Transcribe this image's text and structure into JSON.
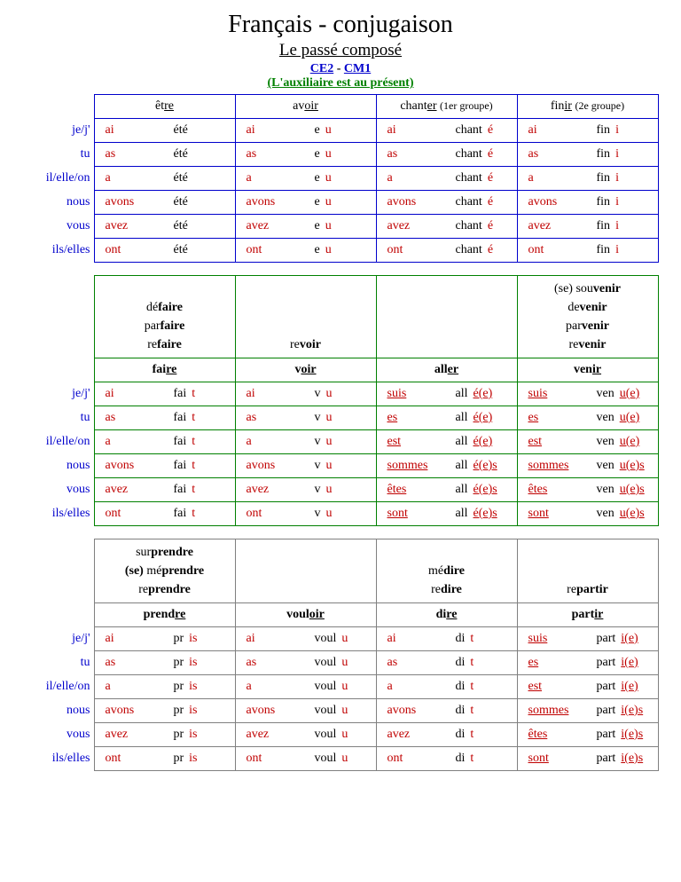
{
  "title": "Français - conjugaison",
  "subtitle1": "Le passé composé",
  "subtitle2_a": "CE2",
  "subtitle2_sep": " - ",
  "subtitle2_b": "CM1",
  "subtitle3": "(L'auxiliaire est au présent)",
  "pronouns": [
    "je/j'",
    "tu",
    "il/elle/on",
    "nous",
    "vous",
    "ils/elles"
  ],
  "aux_avoir": [
    "ai",
    "as",
    "a",
    "avons",
    "avez",
    "ont"
  ],
  "aux_etre": [
    "suis",
    "es",
    "est",
    "sommes",
    "êtes",
    "sont"
  ],
  "t1": {
    "verbs": [
      {
        "hdr_pre": "êt",
        "hdr_ul": "re",
        "hdr_post": "",
        "aux": "avoir",
        "pp_stem": "été",
        "pp_ir": "",
        "agree": false
      },
      {
        "hdr_pre": "av",
        "hdr_ul": "oir",
        "hdr_post": "",
        "aux": "avoir",
        "pp_stem": "e",
        "pp_ir": "u",
        "agree": false
      },
      {
        "hdr_pre": "chant",
        "hdr_ul": "er",
        "hdr_post": " ",
        "note": "(1er groupe)",
        "aux": "avoir",
        "pp_stem": "chant",
        "pp_ir": "é",
        "agree": false
      },
      {
        "hdr_pre": "fin",
        "hdr_ul": "ir",
        "hdr_post": " ",
        "note": "(2e groupe)",
        "aux": "avoir",
        "pp_stem": "fin",
        "pp_ir": "i",
        "agree": false
      }
    ]
  },
  "t2": {
    "verbs": [
      {
        "compounds": [
          "dé<b>faire</b>",
          "par<b>faire</b>",
          "re<b>faire</b>"
        ],
        "base_pre": "fai",
        "base_ul": "re",
        "aux": "avoir",
        "pp_stem": "fai",
        "pp_ir": "t",
        "agree": false,
        "etre": false
      },
      {
        "compounds": [
          "",
          "",
          "re<b>voir</b>"
        ],
        "base_pre": "v",
        "base_ul": "oir",
        "aux": "avoir",
        "pp_stem": "v",
        "pp_ir": "u",
        "agree": false,
        "etre": false
      },
      {
        "compounds": [
          "",
          "",
          ""
        ],
        "base_pre": "all",
        "base_ul": "er",
        "aux": "etre",
        "pp_stem": "all",
        "pp_ir": "é",
        "agree": true,
        "etre": true
      },
      {
        "compounds": [
          "(se) sou<b>venir</b>",
          "de<b>venir</b>",
          "par<b>venir</b>",
          "re<b>venir</b>"
        ],
        "base_pre": "ven",
        "base_ul": "ir",
        "aux": "etre",
        "pp_stem": "ven",
        "pp_ir": "u",
        "agree": true,
        "etre": true
      }
    ]
  },
  "t3": {
    "verbs": [
      {
        "compounds": [
          "sur<b>prendre</b>",
          "<b>(se)</b> mé<b>prendre</b>",
          "re<b>prendre</b>"
        ],
        "base_pre": "prend",
        "base_ul": "re",
        "aux": "avoir",
        "pp_stem": "pr",
        "pp_ir": "is",
        "agree": false,
        "etre": false
      },
      {
        "compounds": [
          "",
          "",
          ""
        ],
        "base_pre": "voul",
        "base_ul": "oir",
        "aux": "avoir",
        "pp_stem": "voul",
        "pp_ir": "u",
        "agree": false,
        "etre": false
      },
      {
        "compounds": [
          "",
          "mé<b>dire</b>",
          "re<b>dire</b>"
        ],
        "base_pre": "di",
        "base_ul": "re",
        "aux": "avoir",
        "pp_stem": "di",
        "pp_ir": "t",
        "agree": false,
        "etre": false
      },
      {
        "compounds": [
          "",
          "",
          "re<b>partir</b>"
        ],
        "base_pre": "part",
        "base_ul": "ir",
        "aux": "etre",
        "pp_stem": "part",
        "pp_ir": "i",
        "agree": true,
        "etre": true
      }
    ]
  },
  "agree_suffix": [
    "(e)",
    "(e)",
    "(e)",
    "(e)s",
    "(e)s",
    "(e)s"
  ]
}
